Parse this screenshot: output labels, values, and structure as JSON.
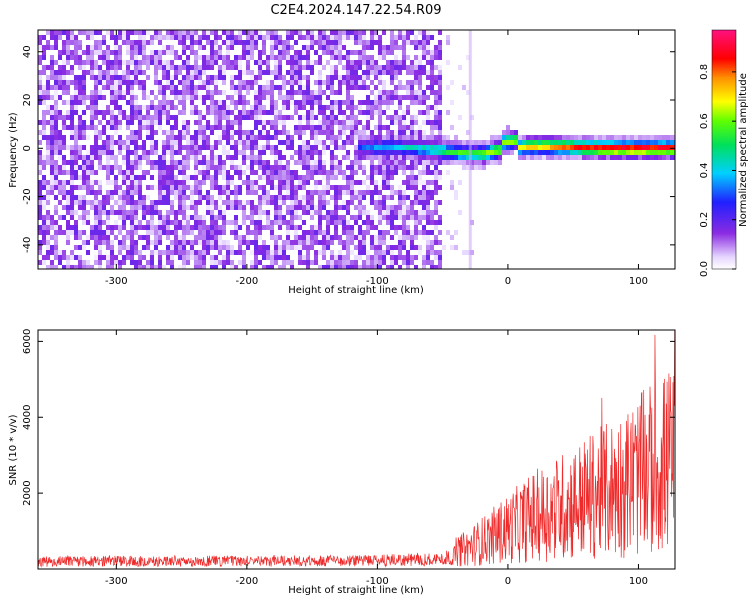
{
  "title": "C2E4.2024.147.22.54.R09",
  "colors": {
    "snr_line": "#ee2a2a",
    "background": "#ffffff",
    "axis": "#000000"
  },
  "chart_data": [
    {
      "type": "heatmap",
      "name": "spectrogram",
      "xlabel": "Height of straight line (km)",
      "ylabel": "Frequency (Hz)",
      "xlim": [
        -360,
        128
      ],
      "ylim": [
        -50,
        49
      ],
      "xticks": [
        -300,
        -200,
        -100,
        0,
        100
      ],
      "yticks": [
        -40,
        -20,
        0,
        20,
        40
      ],
      "colorbar": {
        "label": "Normalized spectral amplitude",
        "range": [
          0,
          0.97
        ],
        "ticks": [
          0.0,
          0.2,
          0.4,
          0.6,
          0.8
        ],
        "colormap": "white-purple-blue-cyan-green-yellow-red-pink"
      },
      "description_regions": [
        {
          "x_range": [
            -360,
            -52
          ],
          "content": "broadband noise, amplitude ~0.05-0.2 across all frequencies"
        },
        {
          "x_range": [
            -115,
            128
          ],
          "content": "narrow signal band centred near 0 Hz, amplitude rising from ~0.3 to ~0.85"
        }
      ]
    },
    {
      "type": "line",
      "name": "snr",
      "xlabel": "Height of straight line (km)",
      "ylabel": "SNR (10 * v/v)",
      "xlim": [
        -360,
        128
      ],
      "ylim": [
        0,
        6300
      ],
      "xticks": [
        -300,
        -200,
        -100,
        0,
        100
      ],
      "yticks": [
        2000,
        4000,
        6000
      ],
      "series": [
        {
          "x": [
            -360,
            -300,
            -200,
            -100,
            -50,
            -30,
            -20,
            -10,
            0,
            20,
            40,
            60,
            80,
            100,
            128
          ],
          "y": [
            300,
            320,
            320,
            340,
            400,
            700,
            900,
            1100,
            1300,
            1700,
            2000,
            2300,
            2600,
            3000,
            3600
          ]
        }
      ]
    }
  ]
}
